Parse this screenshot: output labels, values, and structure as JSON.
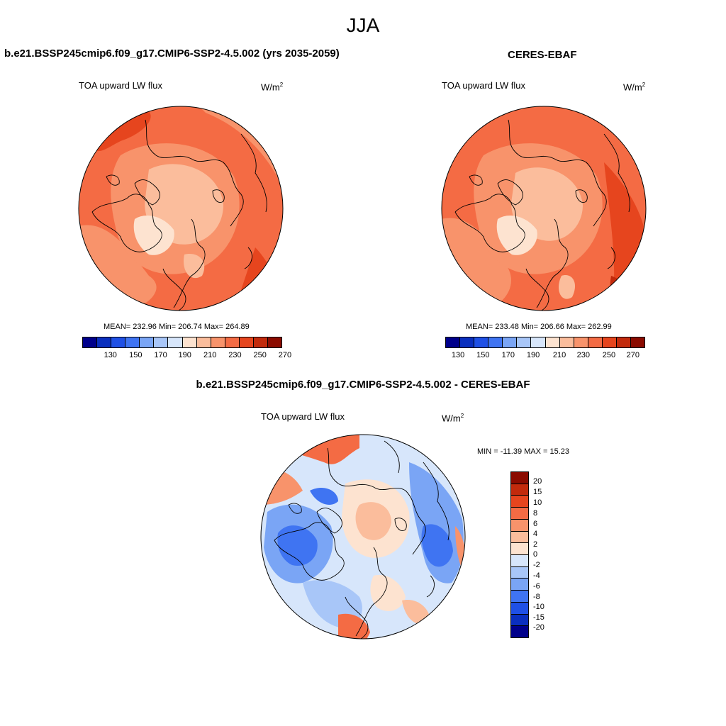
{
  "season": "JJA",
  "units_base": "W/m",
  "units_exp": "2",
  "var_label": "TOA upward LW flux",
  "panels": {
    "model": {
      "title": "b.e21.BSSP245cmip6.f09_g17.CMIP6-SSP2-4.5.002 (yrs 2035-2059)",
      "stats": "MEAN= 232.96  Min= 206.74  Max= 264.89"
    },
    "obs": {
      "title": "CERES-EBAF",
      "stats": "MEAN= 233.48  Min= 206.66  Max= 262.99"
    },
    "diff": {
      "title": "b.e21.BSSP245cmip6.f09_g17.CMIP6-SSP2-4.5.002 - CERES-EBAF",
      "stats": "MIN = -11.39 MAX =  15.23"
    }
  },
  "abs_colorbar": {
    "colors": [
      "#00008b",
      "#0a2fbf",
      "#1f50e6",
      "#3f74f2",
      "#7aa5f5",
      "#a8c6f8",
      "#d7e6fb",
      "#fde3d0",
      "#fbbd9c",
      "#f8936b",
      "#f46b44",
      "#e6451e",
      "#c22a0c",
      "#8b0b00"
    ],
    "ticks": [
      "130",
      "150",
      "170",
      "190",
      "210",
      "230",
      "250",
      "270"
    ]
  },
  "diff_colorbar": {
    "colors": [
      "#8b0b00",
      "#c22a0c",
      "#e6451e",
      "#f46b44",
      "#f8936b",
      "#fbbd9c",
      "#fde3d0",
      "#d7e6fb",
      "#a8c6f8",
      "#7aa5f5",
      "#3f74f2",
      "#1f50e6",
      "#0a2fbf",
      "#00008b"
    ],
    "ticks": [
      "20",
      "15",
      "10",
      "8",
      "6",
      "4",
      "2",
      "0",
      "-2",
      "-4",
      "-6",
      "-8",
      "-10",
      "-15",
      "-20"
    ]
  }
}
